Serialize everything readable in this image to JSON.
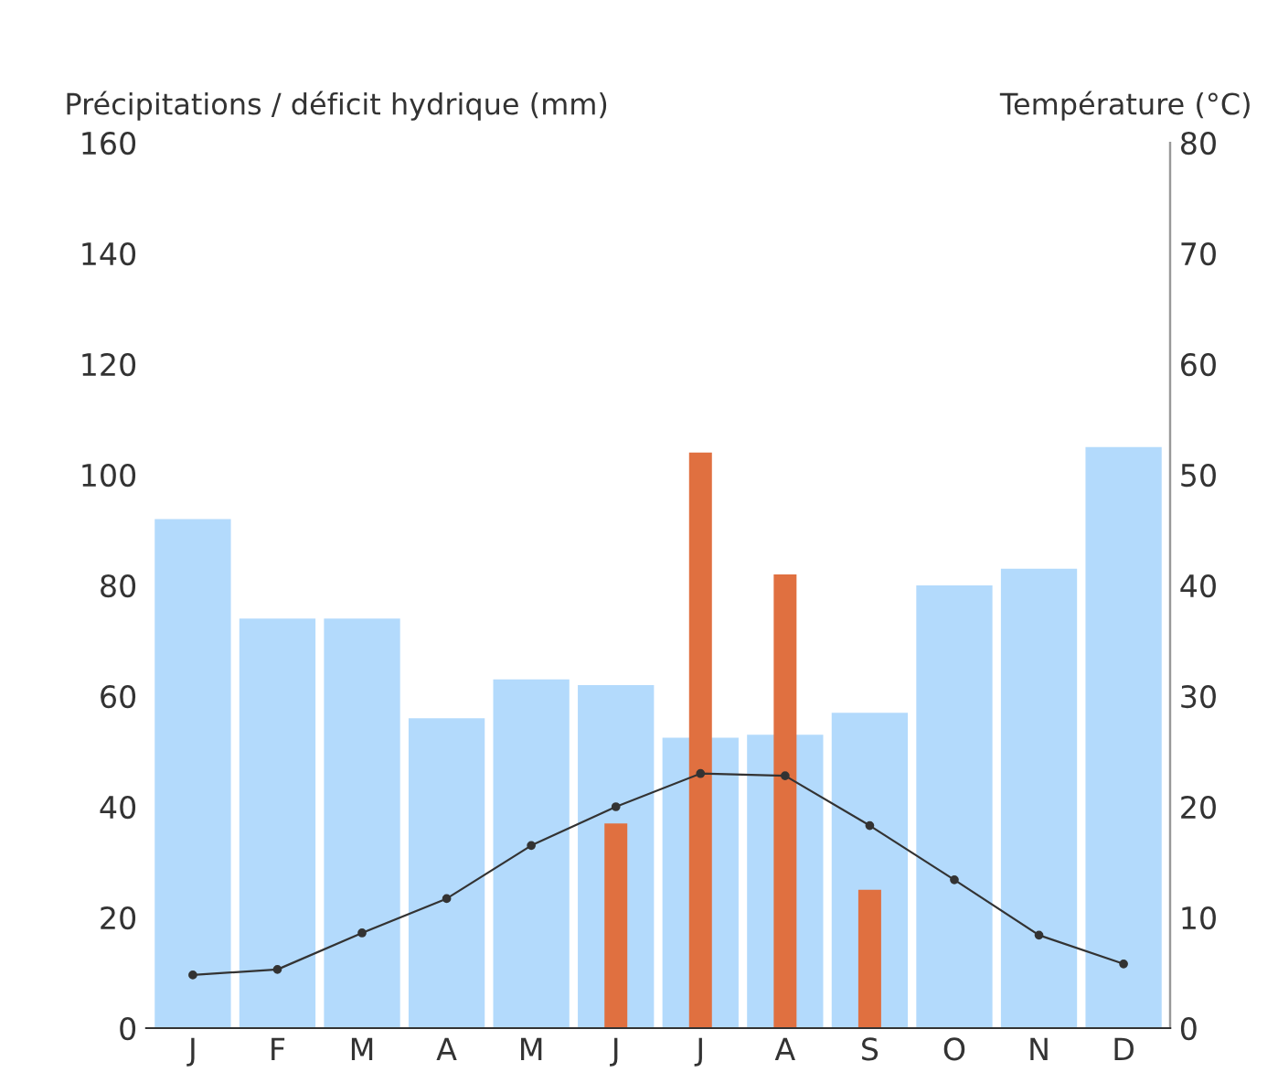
{
  "chart_data": {
    "type": "bar",
    "ylabel": "Précipitations / déficit hydrique (mm)",
    "y2label": "Température (°C)",
    "categories": [
      "J",
      "F",
      "M",
      "A",
      "M",
      "J",
      "J",
      "A",
      "S",
      "O",
      "N",
      "D"
    ],
    "series": [
      {
        "color": "#b3dafc",
        "values": [
          92,
          74,
          74,
          56,
          63,
          62,
          52.5,
          53,
          57,
          80,
          83,
          105
        ]
      },
      {
        "color": "#e07040",
        "values": [
          null,
          null,
          null,
          null,
          null,
          37,
          104,
          82,
          25,
          null,
          null,
          null
        ]
      },
      {
        "type": "line",
        "axis": "y2",
        "color": "#333333",
        "marker": "circle",
        "values": [
          4.8,
          5.3,
          8.6,
          11.7,
          16.5,
          20,
          23,
          22.8,
          18.3,
          13.4,
          8.4,
          5.8
        ]
      }
    ],
    "ylim": [
      0,
      160
    ],
    "yticks": [
      0,
      20,
      40,
      60,
      80,
      100,
      120,
      140,
      160
    ],
    "y2lim": [
      0,
      80
    ],
    "y2ticks": [
      0,
      10,
      20,
      30,
      40,
      50,
      60,
      70,
      80
    ],
    "grid": false,
    "legend": false
  }
}
